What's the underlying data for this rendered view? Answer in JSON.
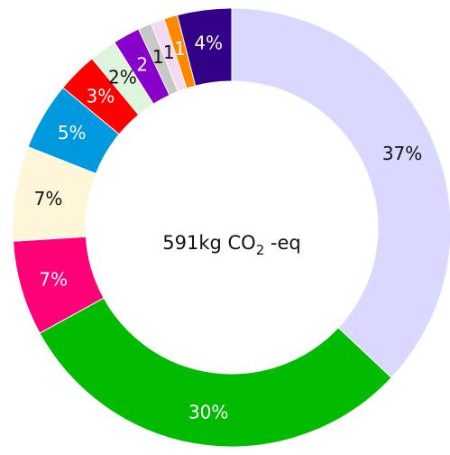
{
  "chart_data": {
    "type": "pie",
    "variant": "donut",
    "center_label": {
      "value": "591kg CO",
      "subscript": "2",
      "suffix": " -eq"
    },
    "slices": [
      {
        "value": 37,
        "label": "37%",
        "color": "#d9d9ff",
        "label_color": "#111111"
      },
      {
        "value": 30,
        "label": "30%",
        "color": "#00bb00",
        "label_color": "#ffffff"
      },
      {
        "value": 7,
        "label": "7%",
        "color": "#ff0077",
        "label_color": "#ffffff"
      },
      {
        "value": 7,
        "label": "7%",
        "color": "#fff5d9",
        "label_color": "#111111"
      },
      {
        "value": 5,
        "label": "5%",
        "color": "#0099dd",
        "label_color": "#ffffff"
      },
      {
        "value": 3,
        "label": "3%",
        "color": "#ff0000",
        "label_color": "#ffffff"
      },
      {
        "value": 2,
        "label": "2%",
        "color": "#ddf5dd",
        "label_color": "#111111"
      },
      {
        "value": 2,
        "label": "2",
        "color": "#8800cc",
        "label_color": "#ffffff"
      },
      {
        "value": 1,
        "label": "1",
        "color": "#c8c8c8",
        "label_color": "#111111"
      },
      {
        "value": 1,
        "label": "1",
        "color": "#f3d9f3",
        "label_color": "#111111"
      },
      {
        "value": 1,
        "label": "1",
        "color": "#ff8800",
        "label_color": "#ffffff"
      },
      {
        "value": 4,
        "label": "4%",
        "color": "#330088",
        "label_color": "#ffffff"
      }
    ]
  }
}
